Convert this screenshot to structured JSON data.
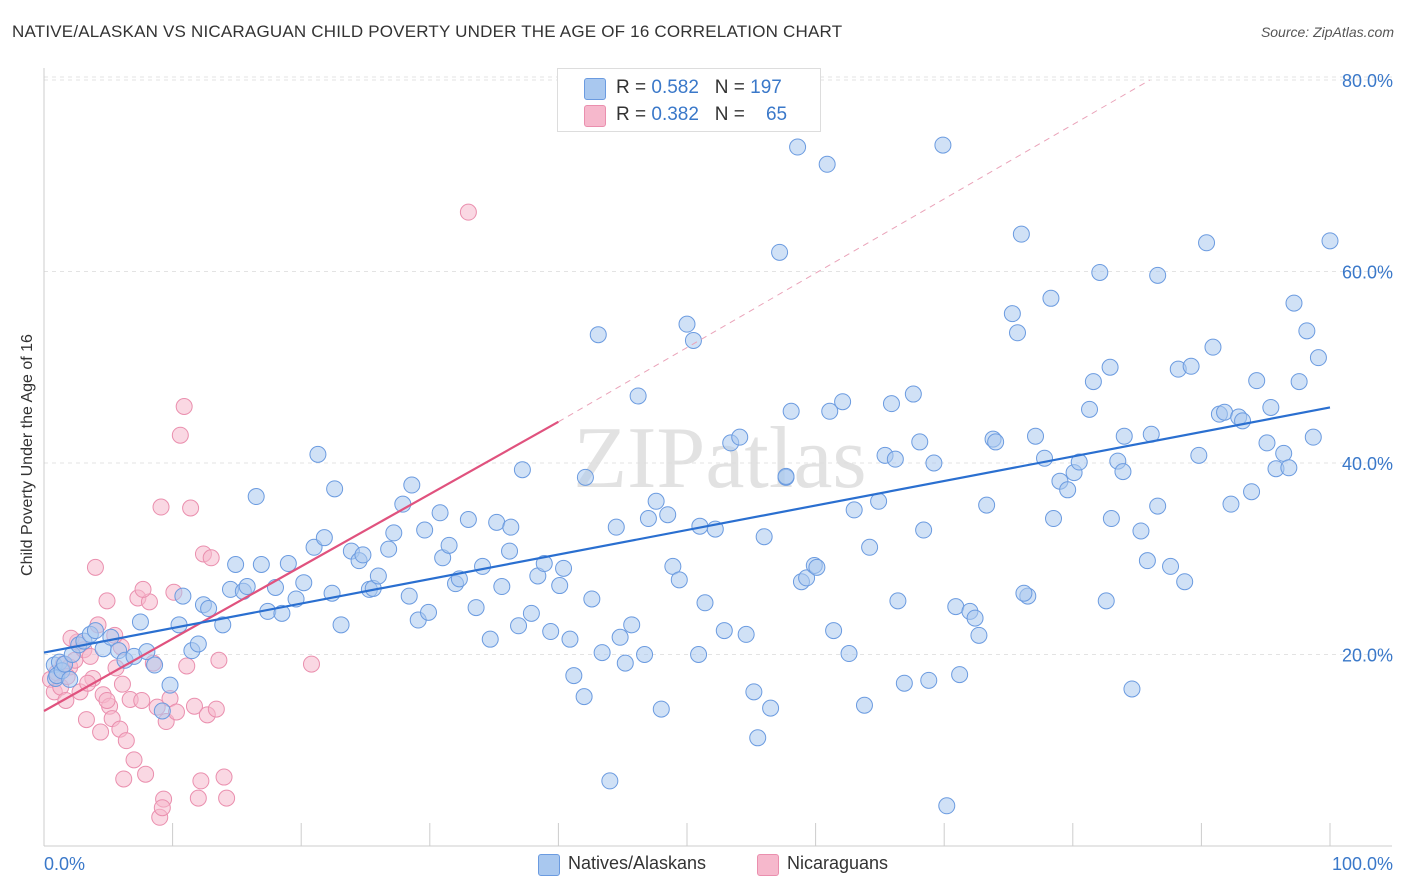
{
  "title": "NATIVE/ALASKAN VS NICARAGUAN CHILD POVERTY UNDER THE AGE OF 16 CORRELATION CHART",
  "source": "Source: ZipAtlas.com",
  "watermark": "ZIPatlas",
  "legend_top": {
    "rows": [
      {
        "r_label": "R = ",
        "r_value": "0.582",
        "n_label": "N = ",
        "n_value": "197"
      },
      {
        "r_label": "R = ",
        "r_value": "0.382",
        "n_label": "N = ",
        "n_value": "65"
      }
    ]
  },
  "colors": {
    "blue_fill": "#a9c8ef",
    "blue_stroke": "#6b9be0",
    "blue_line": "#2a6fd0",
    "pink_fill": "#f6b8cc",
    "pink_stroke": "#ea8fae",
    "pink_line": "#e0527e",
    "tick_text": "#3a78c9",
    "grid": "#e3e3e3"
  },
  "chart_data": {
    "type": "scatter",
    "title": "NATIVE/ALASKAN VS NICARAGUAN CHILD POVERTY UNDER THE AGE OF 16 CORRELATION CHART",
    "xlabel": "",
    "ylabel": "Child Poverty Under the Age of 16",
    "xlim": [
      0,
      100
    ],
    "ylim": [
      0,
      80
    ],
    "x_ticks": [
      {
        "v": 0,
        "label": "0.0%"
      },
      {
        "v": 100,
        "label": "100.0%"
      }
    ],
    "y_ticks": [
      {
        "v": 20,
        "label": "20.0%"
      },
      {
        "v": 40,
        "label": "40.0%"
      },
      {
        "v": 60,
        "label": "60.0%"
      },
      {
        "v": 80,
        "label": "80.0%"
      }
    ],
    "grid": true,
    "legend_position": "bottom",
    "series": [
      {
        "name": "Natives/Alaskans",
        "color": "#a9c8ef",
        "R": 0.582,
        "N": 197,
        "trend": {
          "x": [
            0,
            100
          ],
          "y": [
            20.2,
            45.8
          ],
          "dashed": false
        },
        "points": [
          [
            0.8,
            18.9
          ],
          [
            0.9,
            17.5
          ],
          [
            1.0,
            17.8
          ],
          [
            1.2,
            19.2
          ],
          [
            1.4,
            18.3
          ],
          [
            1.6,
            19.0
          ],
          [
            2.0,
            17.4
          ],
          [
            2.2,
            20.0
          ],
          [
            2.7,
            21.0
          ],
          [
            3.1,
            21.4
          ],
          [
            3.6,
            22.1
          ],
          [
            4.0,
            22.5
          ],
          [
            4.6,
            20.6
          ],
          [
            5.2,
            21.8
          ],
          [
            5.8,
            20.4
          ],
          [
            6.3,
            19.4
          ],
          [
            7.0,
            19.8
          ],
          [
            7.5,
            23.4
          ],
          [
            8.0,
            20.3
          ],
          [
            8.6,
            18.9
          ],
          [
            9.2,
            14.1
          ],
          [
            9.8,
            16.8
          ],
          [
            10.5,
            23.1
          ],
          [
            10.8,
            26.1
          ],
          [
            11.5,
            20.4
          ],
          [
            12.0,
            21.1
          ],
          [
            12.4,
            25.2
          ],
          [
            12.8,
            24.8
          ],
          [
            13.9,
            23.1
          ],
          [
            14.5,
            26.8
          ],
          [
            14.9,
            29.4
          ],
          [
            15.5,
            26.6
          ],
          [
            15.8,
            27.1
          ],
          [
            16.5,
            36.5
          ],
          [
            16.9,
            29.4
          ],
          [
            17.4,
            24.5
          ],
          [
            18.0,
            27.0
          ],
          [
            18.5,
            24.3
          ],
          [
            19.0,
            29.5
          ],
          [
            19.6,
            25.8
          ],
          [
            20.2,
            27.5
          ],
          [
            21.0,
            31.2
          ],
          [
            21.3,
            40.9
          ],
          [
            21.8,
            32.2
          ],
          [
            22.4,
            26.4
          ],
          [
            22.6,
            37.3
          ],
          [
            23.1,
            23.1
          ],
          [
            23.9,
            30.8
          ],
          [
            24.5,
            29.8
          ],
          [
            24.8,
            30.4
          ],
          [
            25.3,
            26.8
          ],
          [
            25.6,
            26.9
          ],
          [
            26.0,
            28.2
          ],
          [
            26.8,
            31.0
          ],
          [
            27.2,
            32.7
          ],
          [
            27.9,
            35.7
          ],
          [
            28.4,
            26.1
          ],
          [
            28.6,
            37.7
          ],
          [
            29.1,
            23.6
          ],
          [
            29.6,
            33.0
          ],
          [
            29.9,
            24.4
          ],
          [
            30.8,
            34.8
          ],
          [
            31.0,
            30.1
          ],
          [
            31.5,
            31.4
          ],
          [
            32.0,
            27.4
          ],
          [
            32.3,
            27.9
          ],
          [
            33.0,
            34.1
          ],
          [
            33.6,
            24.9
          ],
          [
            34.1,
            29.2
          ],
          [
            34.7,
            21.6
          ],
          [
            35.2,
            33.8
          ],
          [
            35.6,
            27.1
          ],
          [
            36.2,
            30.8
          ],
          [
            36.9,
            23.0
          ],
          [
            37.2,
            39.3
          ],
          [
            37.9,
            24.3
          ],
          [
            38.4,
            28.2
          ],
          [
            38.9,
            29.5
          ],
          [
            39.4,
            22.4
          ],
          [
            40.1,
            27.2
          ],
          [
            40.4,
            29.0
          ],
          [
            40.9,
            21.6
          ],
          [
            41.2,
            17.8
          ],
          [
            42.1,
            38.5
          ],
          [
            42.6,
            25.8
          ],
          [
            43.1,
            53.4
          ],
          [
            43.4,
            20.2
          ],
          [
            44.0,
            6.8
          ],
          [
            44.5,
            33.3
          ],
          [
            44.8,
            21.8
          ],
          [
            45.2,
            19.1
          ],
          [
            45.7,
            23.1
          ],
          [
            46.2,
            47.0
          ],
          [
            46.7,
            20.0
          ],
          [
            47.0,
            34.2
          ],
          [
            47.6,
            36.0
          ],
          [
            48.0,
            14.3
          ],
          [
            48.5,
            34.6
          ],
          [
            48.9,
            29.2
          ],
          [
            49.4,
            27.8
          ],
          [
            50.0,
            54.5
          ],
          [
            50.5,
            52.8
          ],
          [
            50.9,
            20.0
          ],
          [
            51.4,
            25.4
          ],
          [
            52.2,
            33.1
          ],
          [
            52.9,
            22.5
          ],
          [
            53.4,
            42.1
          ],
          [
            54.1,
            42.7
          ],
          [
            54.6,
            22.1
          ],
          [
            55.2,
            16.1
          ],
          [
            55.5,
            11.3
          ],
          [
            56.0,
            32.3
          ],
          [
            56.5,
            14.4
          ],
          [
            57.2,
            62.0
          ],
          [
            57.7,
            38.5
          ],
          [
            58.1,
            45.4
          ],
          [
            58.6,
            73.0
          ],
          [
            58.9,
            27.6
          ],
          [
            59.3,
            28.0
          ],
          [
            59.9,
            29.3
          ],
          [
            60.9,
            71.2
          ],
          [
            61.1,
            45.4
          ],
          [
            61.4,
            22.5
          ],
          [
            62.1,
            46.4
          ],
          [
            62.6,
            20.1
          ],
          [
            63.0,
            35.1
          ],
          [
            63.8,
            14.7
          ],
          [
            64.2,
            31.2
          ],
          [
            64.9,
            36.0
          ],
          [
            65.4,
            40.8
          ],
          [
            65.9,
            46.2
          ],
          [
            66.4,
            25.6
          ],
          [
            66.9,
            17.0
          ],
          [
            67.6,
            47.2
          ],
          [
            68.1,
            42.2
          ],
          [
            68.4,
            33.0
          ],
          [
            69.2,
            40.0
          ],
          [
            69.9,
            73.2
          ],
          [
            70.2,
            4.2
          ],
          [
            70.9,
            25.0
          ],
          [
            71.2,
            17.9
          ],
          [
            72.0,
            24.5
          ],
          [
            72.4,
            23.8
          ],
          [
            73.3,
            35.6
          ],
          [
            73.8,
            42.5
          ],
          [
            74.0,
            42.2
          ],
          [
            75.3,
            55.6
          ],
          [
            75.7,
            53.6
          ],
          [
            76.0,
            63.9
          ],
          [
            76.5,
            26.1
          ],
          [
            77.1,
            42.8
          ],
          [
            77.8,
            40.5
          ],
          [
            78.3,
            57.2
          ],
          [
            78.5,
            34.2
          ],
          [
            79.0,
            38.1
          ],
          [
            79.6,
            37.2
          ],
          [
            80.1,
            39.0
          ],
          [
            80.5,
            40.1
          ],
          [
            81.3,
            45.6
          ],
          [
            81.6,
            48.5
          ],
          [
            82.1,
            59.9
          ],
          [
            82.9,
            50.0
          ],
          [
            83.0,
            34.2
          ],
          [
            83.5,
            40.2
          ],
          [
            83.9,
            39.1
          ],
          [
            84.0,
            42.8
          ],
          [
            84.6,
            16.4
          ],
          [
            85.3,
            32.9
          ],
          [
            85.8,
            29.8
          ],
          [
            86.1,
            43.0
          ],
          [
            86.6,
            59.6
          ],
          [
            87.6,
            29.2
          ],
          [
            88.2,
            49.8
          ],
          [
            88.7,
            27.6
          ],
          [
            89.2,
            50.1
          ],
          [
            89.8,
            40.8
          ],
          [
            90.4,
            63.0
          ],
          [
            90.9,
            52.1
          ],
          [
            91.4,
            45.1
          ],
          [
            91.8,
            45.3
          ],
          [
            92.3,
            35.7
          ],
          [
            92.9,
            44.8
          ],
          [
            93.2,
            44.4
          ],
          [
            93.9,
            37.0
          ],
          [
            94.3,
            48.6
          ],
          [
            95.1,
            42.1
          ],
          [
            95.4,
            45.8
          ],
          [
            95.8,
            39.4
          ],
          [
            96.4,
            41.0
          ],
          [
            96.8,
            39.5
          ],
          [
            97.2,
            56.7
          ],
          [
            97.6,
            48.5
          ],
          [
            98.2,
            53.8
          ],
          [
            98.7,
            42.7
          ],
          [
            99.1,
            51.0
          ],
          [
            100.0,
            63.2
          ],
          [
            68.8,
            17.3
          ],
          [
            36.3,
            33.3
          ],
          [
            42.0,
            15.6
          ],
          [
            57.7,
            38.6
          ],
          [
            51.0,
            33.4
          ],
          [
            72.7,
            22.0
          ],
          [
            86.6,
            35.5
          ],
          [
            76.2,
            26.4
          ],
          [
            66.2,
            40.4
          ],
          [
            60.1,
            29.1
          ],
          [
            82.6,
            25.6
          ]
        ]
      },
      {
        "name": "Nicaraguans",
        "color": "#f6b8cc",
        "R": 0.382,
        "N": 65,
        "trend": {
          "x": [
            0,
            40
          ],
          "y": [
            14.1,
            44.3
          ],
          "dashed": false,
          "extend_dashed_to": [
            86,
            80
          ]
        },
        "points": [
          [
            0.5,
            17.4
          ],
          [
            0.8,
            16.1
          ],
          [
            1.0,
            18.1
          ],
          [
            1.3,
            16.6
          ],
          [
            1.5,
            19.0
          ],
          [
            1.7,
            15.2
          ],
          [
            2.0,
            18.7
          ],
          [
            2.4,
            19.4
          ],
          [
            1.8,
            17.7
          ],
          [
            2.6,
            21.3
          ],
          [
            2.8,
            16.1
          ],
          [
            3.1,
            20.5
          ],
          [
            3.3,
            13.2
          ],
          [
            3.6,
            19.8
          ],
          [
            3.8,
            17.5
          ],
          [
            4.0,
            29.1
          ],
          [
            4.2,
            23.1
          ],
          [
            4.4,
            11.9
          ],
          [
            4.6,
            15.8
          ],
          [
            4.9,
            25.6
          ],
          [
            5.1,
            14.6
          ],
          [
            5.3,
            13.3
          ],
          [
            5.6,
            18.6
          ],
          [
            5.9,
            12.2
          ],
          [
            6.1,
            16.9
          ],
          [
            6.4,
            11.0
          ],
          [
            6.7,
            15.3
          ],
          [
            7.0,
            9.0
          ],
          [
            7.3,
            25.9
          ],
          [
            7.6,
            15.2
          ],
          [
            7.9,
            7.5
          ],
          [
            8.2,
            25.5
          ],
          [
            8.5,
            19.1
          ],
          [
            8.8,
            14.5
          ],
          [
            9.1,
            35.4
          ],
          [
            9.3,
            4.9
          ],
          [
            9.5,
            13.0
          ],
          [
            9.8,
            15.4
          ],
          [
            10.1,
            26.5
          ],
          [
            10.3,
            14.0
          ],
          [
            10.6,
            42.9
          ],
          [
            10.9,
            45.9
          ],
          [
            11.1,
            18.8
          ],
          [
            11.4,
            35.3
          ],
          [
            11.7,
            14.6
          ],
          [
            12.0,
            5.0
          ],
          [
            12.4,
            30.5
          ],
          [
            12.7,
            13.7
          ],
          [
            13.0,
            30.1
          ],
          [
            13.4,
            14.3
          ],
          [
            13.6,
            19.4
          ],
          [
            14.0,
            7.2
          ],
          [
            14.2,
            5.0
          ],
          [
            20.8,
            19.0
          ],
          [
            33.0,
            66.2
          ],
          [
            6.2,
            7.0
          ],
          [
            9.0,
            3.0
          ],
          [
            9.2,
            4.0
          ],
          [
            12.2,
            6.8
          ],
          [
            6.0,
            20.8
          ],
          [
            4.9,
            15.2
          ],
          [
            2.1,
            21.7
          ],
          [
            3.4,
            17.0
          ],
          [
            5.5,
            22.0
          ],
          [
            7.7,
            26.8
          ]
        ]
      }
    ]
  },
  "legend_bottom": [
    {
      "label": "Natives/Alaskans"
    },
    {
      "label": "Nicaraguans"
    }
  ]
}
